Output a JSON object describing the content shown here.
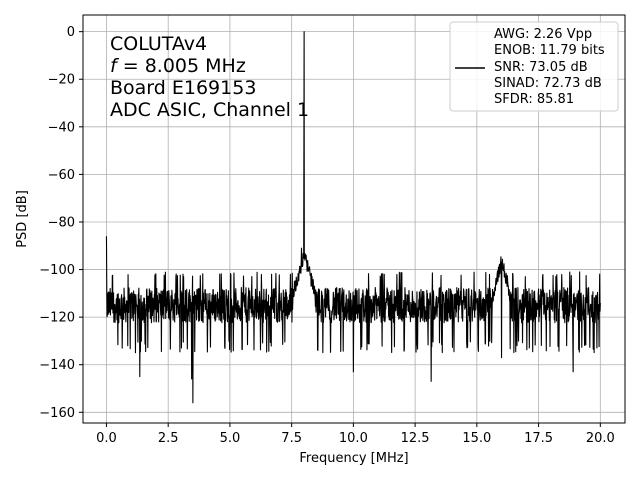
{
  "chart_data": {
    "type": "line",
    "xlabel": "Frequency [MHz]",
    "ylabel": "PSD [dB]",
    "xlim": [
      -0.95,
      21.0
    ],
    "ylim": [
      -164.5,
      7.0
    ],
    "xticks": [
      0.0,
      2.5,
      5.0,
      7.5,
      10.0,
      12.5,
      15.0,
      17.5,
      20.0
    ],
    "xtick_labels": [
      "0.0",
      "2.5",
      "5.0",
      "7.5",
      "10.0",
      "12.5",
      "15.0",
      "17.5",
      "20.0"
    ],
    "yticks": [
      0,
      -20,
      -40,
      -60,
      -80,
      -100,
      -120,
      -140,
      -160
    ],
    "ytick_labels": [
      "0",
      "−20",
      "−40",
      "−60",
      "−80",
      "−100",
      "−120",
      "−140",
      "−160"
    ],
    "grid": true,
    "annotations": {
      "name": "COLUTAv4",
      "freq_var": "f",
      "freq_rest": " = 8.005 MHz",
      "board": "Board E169153",
      "channel": "ADC ASIC, Channel 1"
    },
    "legend": {
      "position": "top-right",
      "lines": [
        "AWG: 2.26 Vpp",
        "ENOB: 11.79 bits",
        "SNR: 73.05 dB",
        "SINAD: 72.73 dB",
        "SFDR: 85.81"
      ]
    },
    "series": [
      {
        "color": "#000000",
        "noise_floor_db": -115,
        "noise_band_db": [
          -130,
          -103
        ],
        "x_range": [
          0.0,
          20.0
        ],
        "features": [
          {
            "x": 0.0,
            "y": -86
          },
          {
            "x": 8.005,
            "y": 0
          },
          {
            "x": 7.9,
            "y": -91
          },
          {
            "x": 16.0,
            "y": -92
          },
          {
            "x": 1.35,
            "y": -145
          },
          {
            "x": 3.5,
            "y": -156
          },
          {
            "x": 3.45,
            "y": -146
          },
          {
            "x": 10.0,
            "y": -143
          },
          {
            "x": 13.15,
            "y": -147
          },
          {
            "x": 16.0,
            "y": -137
          },
          {
            "x": 18.9,
            "y": -143
          }
        ]
      }
    ]
  }
}
